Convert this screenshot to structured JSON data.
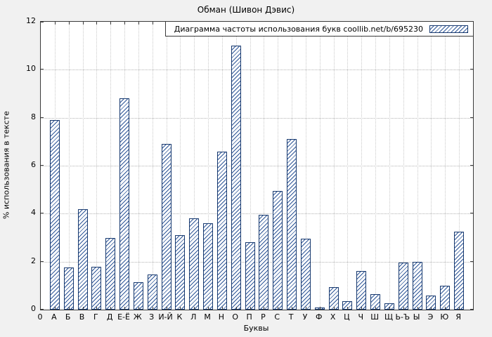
{
  "title": "Обман (Шивон Дэвис)",
  "chart_data": {
    "type": "bar",
    "title": "Обман (Шивон Дэвис)",
    "xlabel": "Буквы",
    "ylabel": "% использования в тексте",
    "legend_label": "Диаграмма частоты использования букв coollib.net/b/695230",
    "legend_position": "top-right",
    "grid": true,
    "ylim": [
      0,
      12
    ],
    "yticks": [
      0,
      2,
      4,
      6,
      8,
      10,
      12
    ],
    "x_origin_label": "0",
    "categories": [
      "А",
      "Б",
      "В",
      "Г",
      "Д",
      "Е-Ё",
      "Ж",
      "З",
      "И-Й",
      "К",
      "Л",
      "М",
      "Н",
      "О",
      "П",
      "Р",
      "С",
      "Т",
      "У",
      "Ф",
      "Х",
      "Ц",
      "Ч",
      "Ш",
      "Щ",
      "Ь-Ъ",
      "Ы",
      "Э",
      "Ю",
      "Я"
    ],
    "values": [
      7.9,
      1.75,
      4.2,
      1.8,
      3.0,
      8.8,
      1.15,
      1.45,
      6.9,
      3.1,
      3.8,
      3.6,
      6.6,
      11.0,
      2.8,
      3.95,
      4.95,
      7.1,
      2.95,
      0.1,
      0.95,
      0.35,
      1.6,
      0.65,
      0.25,
      1.95,
      2.0,
      0.6,
      1.0,
      3.25
    ],
    "bar_color": "#2d5597",
    "bar_border_color": "#16386e",
    "background_color": "#f1f1f1",
    "plot_background_color": "#ffffff"
  }
}
